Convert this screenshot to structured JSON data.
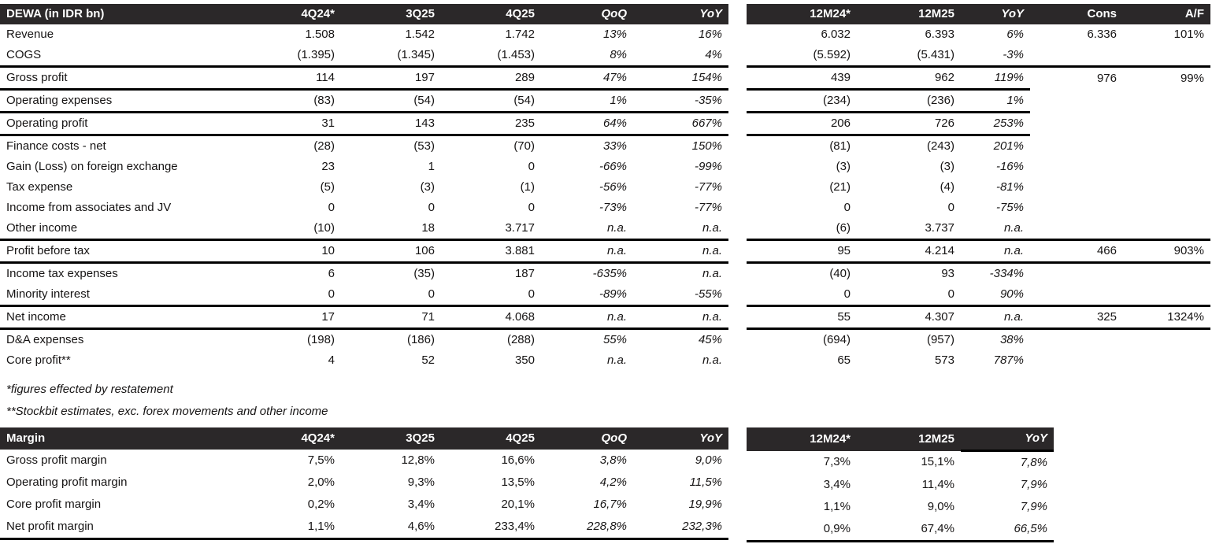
{
  "colors": {
    "header_bg": "#2b2829",
    "rule": "#000000",
    "text": "#161414"
  },
  "income_statement": {
    "left_title": "DEWA (in IDR bn)",
    "left_cols": [
      "4Q24*",
      "3Q25",
      "4Q25",
      "QoQ",
      "YoY"
    ],
    "right_cols": [
      "12M24*",
      "12M25",
      "YoY",
      "Cons",
      "A/F"
    ],
    "rows": [
      {
        "label": "Revenue",
        "bold": true,
        "rule_left": false,
        "rule_right": "none",
        "left": [
          "1.508",
          "1.542",
          "1.742",
          "13%",
          "16%"
        ],
        "right": [
          "6.032",
          "6.393",
          "6%",
          "6.336",
          "101%"
        ]
      },
      {
        "label": "COGS",
        "bold": false,
        "rule_left": true,
        "rule_right": "full",
        "left": [
          "(1.395)",
          "(1.345)",
          "(1.453)",
          "8%",
          "4%"
        ],
        "right": [
          "(5.592)",
          "(5.431)",
          "-3%",
          "",
          ""
        ]
      },
      {
        "label": "Gross profit",
        "bold": true,
        "rule_left": true,
        "rule_right": "short",
        "left": [
          "114",
          "197",
          "289",
          "47%",
          "154%"
        ],
        "right": [
          "439",
          "962",
          "119%",
          "976",
          "99%"
        ]
      },
      {
        "label": "Operating expenses",
        "bold": false,
        "rule_left": true,
        "rule_right": "short",
        "left": [
          "(83)",
          "(54)",
          "(54)",
          "1%",
          "-35%"
        ],
        "right": [
          "(234)",
          "(236)",
          "1%",
          "",
          ""
        ]
      },
      {
        "label": "Operating profit",
        "bold": true,
        "rule_left": true,
        "rule_right": "short",
        "left": [
          "31",
          "143",
          "235",
          "64%",
          "667%"
        ],
        "right": [
          "206",
          "726",
          "253%",
          "",
          ""
        ]
      },
      {
        "label": "Finance costs - net",
        "bold": false,
        "rule_left": false,
        "rule_right": "none",
        "left": [
          "(28)",
          "(53)",
          "(70)",
          "33%",
          "150%"
        ],
        "right": [
          "(81)",
          "(243)",
          "201%",
          "",
          ""
        ]
      },
      {
        "label": "Gain (Loss) on foreign exchange",
        "bold": false,
        "rule_left": false,
        "rule_right": "none",
        "left": [
          "23",
          "1",
          "0",
          "-66%",
          "-99%"
        ],
        "right": [
          "(3)",
          "(3)",
          "-16%",
          "",
          ""
        ]
      },
      {
        "label": "Tax expense",
        "bold": false,
        "rule_left": false,
        "rule_right": "none",
        "left": [
          "(5)",
          "(3)",
          "(1)",
          "-56%",
          "-77%"
        ],
        "right": [
          "(21)",
          "(4)",
          "-81%",
          "",
          ""
        ]
      },
      {
        "label": "Income from associates and JV",
        "bold": false,
        "rule_left": false,
        "rule_right": "none",
        "left": [
          "0",
          "0",
          "0",
          "-73%",
          "-77%"
        ],
        "right": [
          "0",
          "0",
          "-75%",
          "",
          ""
        ]
      },
      {
        "label": "Other income",
        "bold": false,
        "rule_left": true,
        "rule_right": "full",
        "left": [
          "(10)",
          "18",
          "3.717",
          "n.a.",
          "n.a."
        ],
        "right": [
          "(6)",
          "3.737",
          "n.a.",
          "",
          ""
        ]
      },
      {
        "label": "Profit before tax",
        "bold": true,
        "rule_left": true,
        "rule_right": "full",
        "left": [
          "10",
          "106",
          "3.881",
          "n.a.",
          "n.a."
        ],
        "right": [
          "95",
          "4.214",
          "n.a.",
          "466",
          "903%"
        ]
      },
      {
        "label": "Income tax expenses",
        "bold": false,
        "rule_left": false,
        "rule_right": "none",
        "left": [
          "6",
          "(35)",
          "187",
          "-635%",
          "n.a."
        ],
        "right": [
          "(40)",
          "93",
          "-334%",
          "",
          ""
        ]
      },
      {
        "label": "Minority interest",
        "bold": false,
        "rule_left": true,
        "rule_right": "full",
        "left": [
          "0",
          "0",
          "0",
          "-89%",
          "-55%"
        ],
        "right": [
          "0",
          "0",
          "90%",
          "",
          ""
        ]
      },
      {
        "label": "Net income",
        "bold": true,
        "rule_left": true,
        "rule_right": "full",
        "left": [
          "17",
          "71",
          "4.068",
          "n.a.",
          "n.a."
        ],
        "right": [
          "55",
          "4.307",
          "n.a.",
          "325",
          "1324%"
        ]
      },
      {
        "label": "D&A expenses",
        "bold": false,
        "rule_left": false,
        "rule_right": "none",
        "left": [
          "(198)",
          "(186)",
          "(288)",
          "55%",
          "45%"
        ],
        "right": [
          "(694)",
          "(957)",
          "38%",
          "",
          ""
        ]
      },
      {
        "label": "Core profit**",
        "bold": true,
        "rule_left": false,
        "rule_right": "none",
        "left": [
          "4",
          "52",
          "350",
          "n.a.",
          "n.a."
        ],
        "right": [
          "65",
          "573",
          "787%",
          "",
          ""
        ]
      }
    ],
    "footnotes": [
      "*figures effected by restatement",
      "**Stockbit estimates, exc. forex movements and other income"
    ]
  },
  "margin_table": {
    "left_title": "Margin",
    "left_cols": [
      "4Q24*",
      "3Q25",
      "4Q25",
      "QoQ",
      "YoY"
    ],
    "right_cols": [
      "12M24*",
      "12M25",
      "YoY"
    ],
    "rows": [
      {
        "label": "Gross profit margin",
        "bold": false,
        "rule_left": false,
        "rule_right": "none",
        "left": [
          "7,5%",
          "12,8%",
          "16,6%",
          "3,8%",
          "9,0%"
        ],
        "right": [
          "7,3%",
          "15,1%",
          "7,8%"
        ]
      },
      {
        "label": "Operating profit margin",
        "bold": false,
        "rule_left": false,
        "rule_right": "none",
        "left": [
          "2,0%",
          "9,3%",
          "13,5%",
          "4,2%",
          "11,5%"
        ],
        "right": [
          "3,4%",
          "11,4%",
          "7,9%"
        ]
      },
      {
        "label": "Core profit margin",
        "bold": false,
        "rule_left": false,
        "rule_right": "none",
        "left": [
          "0,2%",
          "3,4%",
          "20,1%",
          "16,7%",
          "19,9%"
        ],
        "right": [
          "1,1%",
          "9,0%",
          "7,9%"
        ]
      },
      {
        "label": "Net profit margin",
        "bold": false,
        "rule_left": true,
        "rule_right": "full",
        "left": [
          "1,1%",
          "4,6%",
          "233,4%",
          "228,8%",
          "232,3%"
        ],
        "right": [
          "0,9%",
          "67,4%",
          "66,5%"
        ]
      }
    ]
  }
}
